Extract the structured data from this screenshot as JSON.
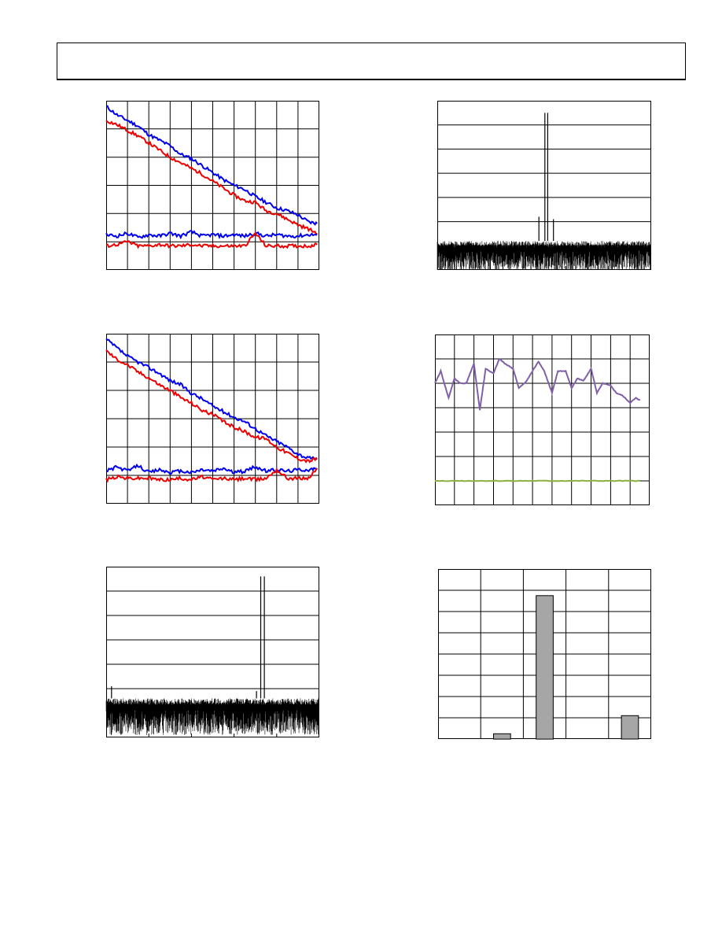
{
  "page": {
    "header_text": ""
  },
  "figures": [
    {
      "id": "fig-top-left",
      "chart_data": {
        "type": "line",
        "grid": true,
        "xlim": [
          0,
          10
        ],
        "ylim": [
          0,
          6
        ],
        "series": [
          {
            "color": "#0000ee",
            "x": [
              0,
              0.5,
              1,
              1.5,
              2,
              2.5,
              3,
              3.5,
              4,
              4.5,
              5,
              5.5,
              6,
              6.5,
              7,
              7.5,
              8,
              8.5,
              9,
              9.5,
              9.9
            ],
            "y": [
              5.8,
              5.5,
              5.3,
              5.1,
              4.8,
              4.6,
              4.4,
              4.1,
              3.95,
              3.7,
              3.45,
              3.2,
              3.0,
              2.85,
              2.6,
              2.4,
              2.2,
              2.1,
              1.95,
              1.7,
              1.65
            ]
          },
          {
            "color": "#ee0000",
            "x": [
              0,
              0.5,
              1,
              1.5,
              2,
              2.5,
              3,
              3.5,
              4,
              4.5,
              5,
              5.5,
              6,
              6.5,
              7,
              7.5,
              8,
              8.5,
              9,
              9.5,
              9.9
            ],
            "y": [
              5.3,
              5.15,
              4.95,
              4.75,
              4.5,
              4.25,
              4.0,
              3.8,
              3.6,
              3.4,
              3.15,
              2.9,
              2.65,
              2.45,
              2.4,
              2.1,
              2.0,
              1.8,
              1.6,
              1.45,
              1.3
            ]
          },
          {
            "color": "#0000ee",
            "x": [
              0,
              0.5,
              1,
              1.5,
              2,
              2.5,
              3,
              3.5,
              4,
              4.5,
              5,
              5.5,
              6,
              6.5,
              7,
              7.5,
              8,
              8.5,
              9,
              9.5,
              9.9
            ],
            "y": [
              1.25,
              1.2,
              1.3,
              1.15,
              1.25,
              1.2,
              1.3,
              1.2,
              1.35,
              1.2,
              1.25,
              1.2,
              1.25,
              1.2,
              1.3,
              1.2,
              1.25,
              1.2,
              1.2,
              1.25,
              1.25
            ]
          },
          {
            "color": "#ee0000",
            "x": [
              0,
              0.5,
              1,
              1.5,
              2,
              2.5,
              3,
              3.5,
              4,
              4.5,
              5,
              5.5,
              6,
              6.5,
              7,
              7.5,
              8,
              8.5,
              9,
              9.5,
              9.9
            ],
            "y": [
              0.85,
              0.9,
              1.0,
              0.85,
              0.85,
              0.9,
              0.85,
              0.85,
              0.9,
              0.85,
              0.85,
              0.85,
              0.85,
              0.85,
              1.3,
              0.85,
              0.85,
              0.85,
              0.85,
              0.85,
              0.9
            ]
          }
        ]
      }
    },
    {
      "id": "fig-top-right",
      "chart_data": {
        "type": "line",
        "grid": true,
        "xlim": [
          0,
          100
        ],
        "ylim": [
          0,
          7
        ],
        "noise_floor": 1.2,
        "noise_depth": 1.3,
        "peaks": [
          {
            "x": 50.3,
            "y": 6.5
          },
          {
            "x": 51.6,
            "y": 6.5
          },
          {
            "x": 47.5,
            "y": 2.2
          },
          {
            "x": 54.3,
            "y": 2.1
          }
        ]
      }
    },
    {
      "id": "fig-mid-left",
      "chart_data": {
        "type": "line",
        "grid": true,
        "xlim": [
          0,
          10
        ],
        "ylim": [
          0,
          6
        ],
        "series": [
          {
            "color": "#0000ee",
            "x": [
              0,
              0.5,
              1,
              1.5,
              2,
              2.5,
              3,
              3.5,
              4,
              4.5,
              5,
              5.5,
              6,
              6.5,
              7,
              7.5,
              8,
              8.5,
              9,
              9.5,
              9.9
            ],
            "y": [
              5.8,
              5.5,
              5.2,
              5.0,
              4.8,
              4.6,
              4.35,
              4.2,
              3.9,
              3.7,
              3.45,
              3.25,
              3.05,
              2.9,
              2.65,
              2.4,
              2.2,
              2.0,
              1.75,
              1.6,
              1.6
            ]
          },
          {
            "color": "#ee0000",
            "x": [
              0,
              0.5,
              1,
              1.5,
              2,
              2.5,
              3,
              3.5,
              4,
              4.5,
              5,
              5.5,
              6,
              6.5,
              7,
              7.5,
              8,
              8.5,
              9,
              9.5,
              9.9
            ],
            "y": [
              5.4,
              5.1,
              4.9,
              4.65,
              4.45,
              4.2,
              4.0,
              3.75,
              3.55,
              3.3,
              3.15,
              2.9,
              2.7,
              2.55,
              2.35,
              2.3,
              2.0,
              1.8,
              1.6,
              1.5,
              1.6
            ]
          },
          {
            "color": "#0000ee",
            "x": [
              0,
              0.5,
              1,
              1.5,
              2,
              2.5,
              3,
              3.5,
              4,
              4.5,
              5,
              5.5,
              6,
              6.5,
              7,
              7.5,
              8,
              8.5,
              9,
              9.5,
              9.9
            ],
            "y": [
              1.15,
              1.3,
              1.15,
              1.35,
              1.1,
              1.2,
              1.1,
              1.15,
              1.1,
              1.2,
              1.15,
              1.25,
              1.1,
              1.15,
              1.3,
              1.15,
              1.2,
              1.15,
              1.2,
              1.2,
              1.25
            ]
          },
          {
            "color": "#ee0000",
            "x": [
              0,
              0.5,
              1,
              1.5,
              2,
              2.5,
              3,
              3.5,
              4,
              4.5,
              5,
              5.5,
              6,
              6.5,
              7,
              7.5,
              8,
              8.5,
              9,
              9.5,
              9.9
            ],
            "y": [
              0.85,
              0.95,
              0.9,
              0.9,
              0.9,
              0.85,
              0.85,
              0.9,
              0.85,
              0.95,
              0.85,
              0.9,
              0.85,
              0.9,
              0.85,
              0.9,
              1.2,
              0.9,
              0.9,
              0.9,
              1.25
            ]
          }
        ]
      }
    },
    {
      "id": "fig-mid-right",
      "chart_data": {
        "type": "line",
        "grid": true,
        "xlim": [
          0,
          11
        ],
        "ylim": [
          0,
          7
        ],
        "series": [
          {
            "color": "#8060a8",
            "x": [
              0,
              0.3,
              0.7,
              1.0,
              1.3,
              1.6,
              2.0,
              2.3,
              2.6,
              3.0,
              3.3,
              3.6,
              4.0,
              4.3,
              4.7,
              5.0,
              5.3,
              5.6,
              6.0,
              6.3,
              6.7,
              7.0,
              7.3,
              7.6,
              8.0,
              8.3,
              8.6,
              9.0,
              9.3,
              9.6,
              10.0,
              10.3,
              10.5
            ],
            "y": [
              5.0,
              5.5,
              4.4,
              5.2,
              5.0,
              5.0,
              5.8,
              3.9,
              5.6,
              5.4,
              6.0,
              5.8,
              5.6,
              4.8,
              5.1,
              5.5,
              5.9,
              5.5,
              4.6,
              5.5,
              5.5,
              4.8,
              5.2,
              5.1,
              5.6,
              4.6,
              5.0,
              4.9,
              4.6,
              4.5,
              4.2,
              4.4,
              4.3
            ]
          },
          {
            "color": "#8db040",
            "x": [
              0,
              1,
              2,
              3,
              4,
              5,
              6,
              7,
              8,
              9,
              10,
              10.5
            ],
            "y": [
              1.0,
              1.0,
              1.0,
              1.0,
              1.0,
              1.0,
              1.0,
              1.0,
              1.0,
              1.0,
              1.0,
              1.0
            ]
          }
        ]
      }
    },
    {
      "id": "fig-bottom-left",
      "chart_data": {
        "type": "line",
        "grid": true,
        "xlim": [
          0,
          100
        ],
        "ylim": [
          0,
          7
        ],
        "noise_floor": 1.6,
        "noise_depth": 1.5,
        "peaks": [
          {
            "x": 72.5,
            "y": 6.6
          },
          {
            "x": 74.2,
            "y": 6.6
          },
          {
            "x": 2.5,
            "y": 2.1
          },
          {
            "x": 70.5,
            "y": 1.9
          }
        ]
      }
    },
    {
      "id": "fig-bottom-right",
      "chart_data": {
        "type": "bar",
        "grid": true,
        "ylim": [
          0,
          8
        ],
        "categories": [
          "",
          "",
          "",
          "",
          ""
        ],
        "values": [
          0,
          0.25,
          6.75,
          0,
          1.1
        ]
      }
    }
  ]
}
